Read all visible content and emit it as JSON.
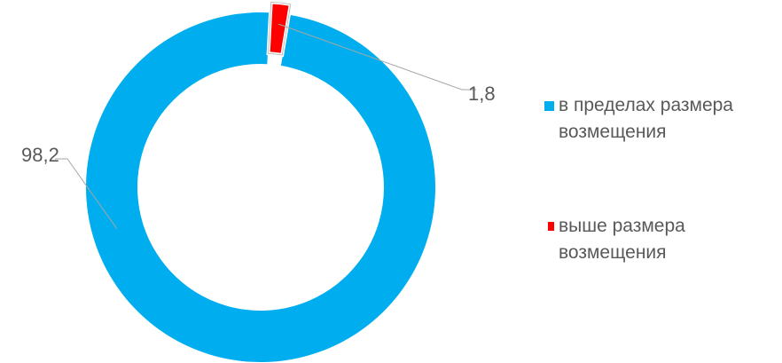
{
  "chart_data": {
    "type": "pie",
    "variant": "doughnut",
    "series": [
      {
        "name": "в пределах размера возмещения",
        "value": 98.2,
        "label": "98,2",
        "color": "#00AEEF"
      },
      {
        "name": "выше размера возмещения",
        "value": 1.8,
        "label": "1,8",
        "color": "#FF0000"
      }
    ],
    "legend": {
      "placement": "right"
    },
    "exploded_slice": "выше размера возмещения"
  }
}
